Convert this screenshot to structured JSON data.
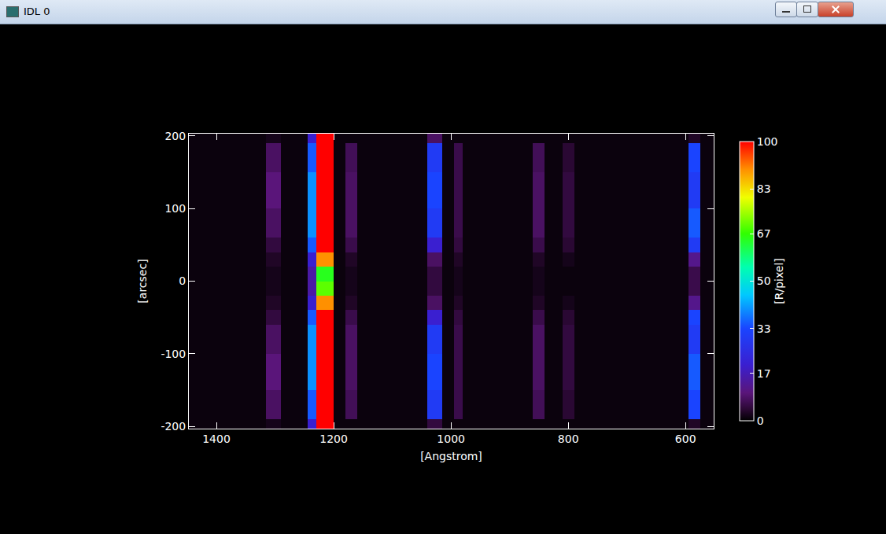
{
  "window": {
    "title": "IDL 0"
  },
  "chart_data": {
    "type": "heatmap",
    "x_label": "[Angstrom]",
    "y_label": "[arcsec]",
    "x_edges": [
      552,
      575,
      595,
      790,
      810,
      840,
      860,
      980,
      995,
      1015,
      1040,
      1160,
      1180,
      1200,
      1230,
      1245,
      1290,
      1315,
      1447
    ],
    "y_edges": [
      -203,
      -190,
      -150,
      -100,
      -60,
      -40,
      -20,
      0,
      20,
      40,
      60,
      100,
      150,
      190,
      203
    ],
    "cells": [
      [
        1,
        3,
        1,
        1,
        1,
        1,
        1,
        1,
        1,
        5,
        1,
        1,
        1,
        100,
        20,
        1,
        2,
        1
      ],
      [
        1,
        33,
        1,
        4,
        1,
        7,
        1,
        6,
        1,
        30,
        1,
        7,
        1,
        100,
        35,
        1,
        8,
        1
      ],
      [
        1,
        35,
        1,
        5,
        1,
        8,
        1,
        6,
        1,
        33,
        1,
        8,
        1,
        100,
        40,
        1,
        10,
        1
      ],
      [
        1,
        30,
        1,
        5,
        1,
        8,
        1,
        6,
        1,
        30,
        1,
        8,
        1,
        100,
        40,
        1,
        8,
        1
      ],
      [
        1,
        33,
        1,
        4,
        1,
        6,
        1,
        5,
        1,
        20,
        1,
        6,
        1,
        100,
        35,
        1,
        5,
        1
      ],
      [
        1,
        12,
        1,
        2,
        1,
        3,
        1,
        3,
        1,
        8,
        1,
        3,
        1,
        90,
        20,
        1,
        3,
        1
      ],
      [
        1,
        6,
        1,
        1,
        1,
        2,
        1,
        2,
        1,
        5,
        1,
        2,
        1,
        70,
        15,
        1,
        2,
        1
      ],
      [
        1,
        6,
        1,
        1,
        1,
        2,
        1,
        2,
        1,
        5,
        1,
        2,
        1,
        65,
        15,
        1,
        2,
        1
      ],
      [
        1,
        12,
        1,
        2,
        1,
        3,
        1,
        3,
        1,
        8,
        1,
        3,
        1,
        90,
        20,
        1,
        3,
        1
      ],
      [
        1,
        30,
        1,
        4,
        1,
        6,
        1,
        5,
        1,
        20,
        1,
        6,
        1,
        100,
        35,
        1,
        5,
        1
      ],
      [
        1,
        35,
        1,
        5,
        1,
        8,
        1,
        6,
        1,
        30,
        1,
        8,
        1,
        100,
        40,
        1,
        8,
        1
      ],
      [
        1,
        30,
        1,
        5,
        1,
        8,
        1,
        6,
        1,
        33,
        1,
        8,
        1,
        100,
        40,
        1,
        10,
        1
      ],
      [
        1,
        33,
        1,
        4,
        1,
        7,
        1,
        6,
        1,
        30,
        1,
        7,
        1,
        100,
        35,
        1,
        8,
        1
      ],
      [
        1,
        3,
        1,
        1,
        1,
        1,
        1,
        1,
        1,
        8,
        1,
        1,
        1,
        100,
        20,
        1,
        2,
        1
      ]
    ],
    "xlim": [
      1447,
      552
    ],
    "ylim": [
      -203,
      203
    ],
    "xticks": [
      1400,
      1200,
      1000,
      800,
      600
    ],
    "yticks": [
      -200,
      -100,
      0,
      100,
      200
    ],
    "colorbar": {
      "range": [
        0,
        100
      ],
      "ticks": [
        0,
        17,
        33,
        50,
        67,
        83,
        100
      ],
      "label": "[R/pixel]"
    }
  }
}
